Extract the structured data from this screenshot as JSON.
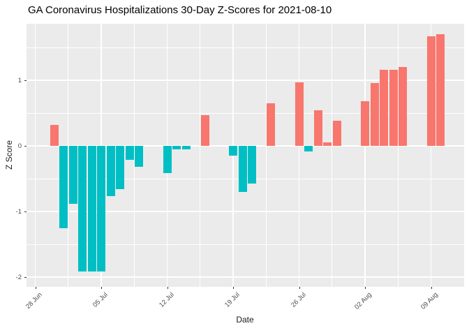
{
  "chart_data": {
    "type": "bar",
    "title": "GA Coronavirus Hospitalizations 30-Day Z-Scores for 2021-08-10",
    "xlabel": "Date",
    "ylabel": "Z Score",
    "legend": "none",
    "grid": true,
    "x_axis": {
      "start_date": "2021-06-28",
      "ticks": [
        {
          "label": "28 Jun",
          "date": "2021-06-28"
        },
        {
          "label": "05 Jul",
          "date": "2021-07-05"
        },
        {
          "label": "12 Jul",
          "date": "2021-07-12"
        },
        {
          "label": "19 Jul",
          "date": "2021-07-19"
        },
        {
          "label": "26 Jul",
          "date": "2021-07-26"
        },
        {
          "label": "02 Aug",
          "date": "2021-08-02"
        },
        {
          "label": "09 Aug",
          "date": "2021-08-09"
        }
      ],
      "minor_gridlines_between_ticks": true
    },
    "y_axis": {
      "ticks": [
        1,
        0,
        -1,
        -2
      ],
      "minor_ticks": [
        1.5,
        0.5,
        -0.5,
        -1.5
      ],
      "range": [
        -2.15,
        1.86
      ]
    },
    "points": [
      {
        "date": "2021-06-30",
        "z": 0.32
      },
      {
        "date": "2021-07-01",
        "z": -1.26
      },
      {
        "date": "2021-07-02",
        "z": -0.88
      },
      {
        "date": "2021-07-03",
        "z": -1.92
      },
      {
        "date": "2021-07-04",
        "z": -1.92
      },
      {
        "date": "2021-07-05",
        "z": -1.92
      },
      {
        "date": "2021-07-06",
        "z": -0.77
      },
      {
        "date": "2021-07-07",
        "z": -0.66
      },
      {
        "date": "2021-07-08",
        "z": -0.21
      },
      {
        "date": "2021-07-09",
        "z": -0.32
      },
      {
        "date": "2021-07-12",
        "z": -0.41
      },
      {
        "date": "2021-07-13",
        "z": -0.05
      },
      {
        "date": "2021-07-14",
        "z": -0.05
      },
      {
        "date": "2021-07-16",
        "z": 0.47
      },
      {
        "date": "2021-07-19",
        "z": -0.15
      },
      {
        "date": "2021-07-20",
        "z": -0.7
      },
      {
        "date": "2021-07-21",
        "z": -0.57
      },
      {
        "date": "2021-07-23",
        "z": 0.65
      },
      {
        "date": "2021-07-26",
        "z": 0.97
      },
      {
        "date": "2021-07-27",
        "z": -0.09
      },
      {
        "date": "2021-07-28",
        "z": 0.54
      },
      {
        "date": "2021-07-29",
        "z": 0.05
      },
      {
        "date": "2021-07-30",
        "z": 0.38
      },
      {
        "date": "2021-08-02",
        "z": 0.68
      },
      {
        "date": "2021-08-03",
        "z": 0.96
      },
      {
        "date": "2021-08-04",
        "z": 1.16
      },
      {
        "date": "2021-08-05",
        "z": 1.16
      },
      {
        "date": "2021-08-06",
        "z": 1.2
      },
      {
        "date": "2021-08-09",
        "z": 1.67
      },
      {
        "date": "2021-08-10",
        "z": 1.7
      }
    ],
    "style": {
      "positive_color": "#F8766D",
      "negative_color": "#00BFC4",
      "panel_bg": "#EBEBEB",
      "grid_color": "#FFFFFF",
      "axis_text_color": "#4D4D4D",
      "title_color": "#000000"
    }
  }
}
